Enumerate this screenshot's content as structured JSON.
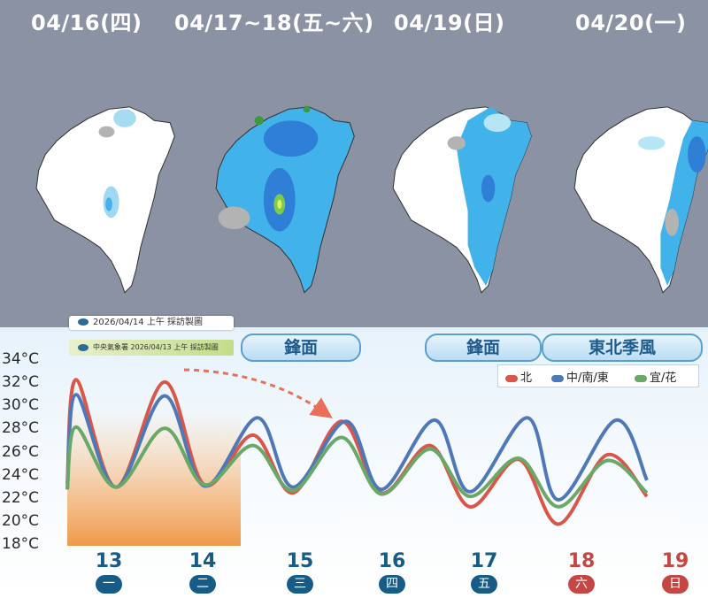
{
  "maps": {
    "titles": [
      "04/16(四)",
      "04/17~18(五~六)",
      "04/19(日)",
      "04/20(一)"
    ]
  },
  "timestamps": {
    "top": "2026/04/14 上午 採訪製圖",
    "sub": "中央氣象署 2026/04/13 上午 採訪製圖"
  },
  "labels": {
    "front1": "鋒面",
    "front2": "鋒面",
    "monsoon": "東北季風"
  },
  "colors": {
    "north": "#d9574a",
    "central": "#4e78b8",
    "east": "#6aa867",
    "weekday": "#175c86",
    "weekend": "#c54744",
    "past_shade": "#f0a058"
  },
  "chart_data": {
    "type": "line",
    "ylabels": [
      "34°C",
      "32°C",
      "30°C",
      "28°C",
      "26°C",
      "24°C",
      "22°C",
      "20°C",
      "18°C"
    ],
    "ylim": [
      18,
      34
    ],
    "days": [
      {
        "num": "13",
        "dow": "一",
        "weekend": false
      },
      {
        "num": "14",
        "dow": "二",
        "weekend": false
      },
      {
        "num": "15",
        "dow": "三",
        "weekend": false
      },
      {
        "num": "16",
        "dow": "四",
        "weekend": false
      },
      {
        "num": "17",
        "dow": "五",
        "weekend": false
      },
      {
        "num": "18",
        "dow": "六",
        "weekend": true
      },
      {
        "num": "19",
        "dow": "日",
        "weekend": true
      }
    ],
    "series": [
      {
        "name": "北",
        "color": "#d9574a",
        "points": [
          [
            0,
            23.3
          ],
          [
            0.55,
            32.3
          ],
          [
            1.0,
            23.0
          ],
          [
            1.55,
            32.1
          ],
          [
            2.0,
            23.2
          ],
          [
            2.55,
            27.5
          ],
          [
            3.0,
            22.5
          ],
          [
            3.55,
            28.7
          ],
          [
            4.0,
            22.5
          ],
          [
            4.55,
            26.6
          ],
          [
            5.0,
            21.3
          ],
          [
            5.55,
            25.4
          ],
          [
            6.0,
            19.8
          ],
          [
            6.55,
            25.8
          ],
          [
            7.0,
            22.2
          ]
        ]
      },
      {
        "name": "中/南/東",
        "color": "#4e78b8",
        "points": [
          [
            0,
            22.8
          ],
          [
            0.55,
            31.0
          ],
          [
            1.0,
            23.0
          ],
          [
            1.55,
            30.9
          ],
          [
            2.0,
            23.1
          ],
          [
            2.6,
            29.0
          ],
          [
            3.0,
            23.0
          ],
          [
            3.6,
            28.7
          ],
          [
            4.0,
            22.8
          ],
          [
            4.6,
            28.8
          ],
          [
            5.0,
            22.6
          ],
          [
            5.65,
            29.0
          ],
          [
            6.0,
            21.9
          ],
          [
            6.65,
            28.8
          ],
          [
            7.0,
            23.6
          ]
        ]
      },
      {
        "name": "宜/花",
        "color": "#6aa867",
        "points": [
          [
            0,
            22.8
          ],
          [
            0.55,
            28.2
          ],
          [
            1.0,
            23.0
          ],
          [
            1.55,
            28.1
          ],
          [
            2.0,
            23.2
          ],
          [
            2.55,
            26.6
          ],
          [
            3.0,
            22.7
          ],
          [
            3.55,
            27.3
          ],
          [
            4.0,
            22.4
          ],
          [
            4.55,
            26.3
          ],
          [
            5.0,
            22.2
          ],
          [
            5.55,
            25.5
          ],
          [
            6.0,
            21.3
          ],
          [
            6.55,
            25.3
          ],
          [
            7.0,
            22.5
          ]
        ]
      }
    ],
    "legend": [
      "北",
      "中/南/東",
      "宜/花"
    ],
    "legend_position": "top-right",
    "grid": false
  }
}
